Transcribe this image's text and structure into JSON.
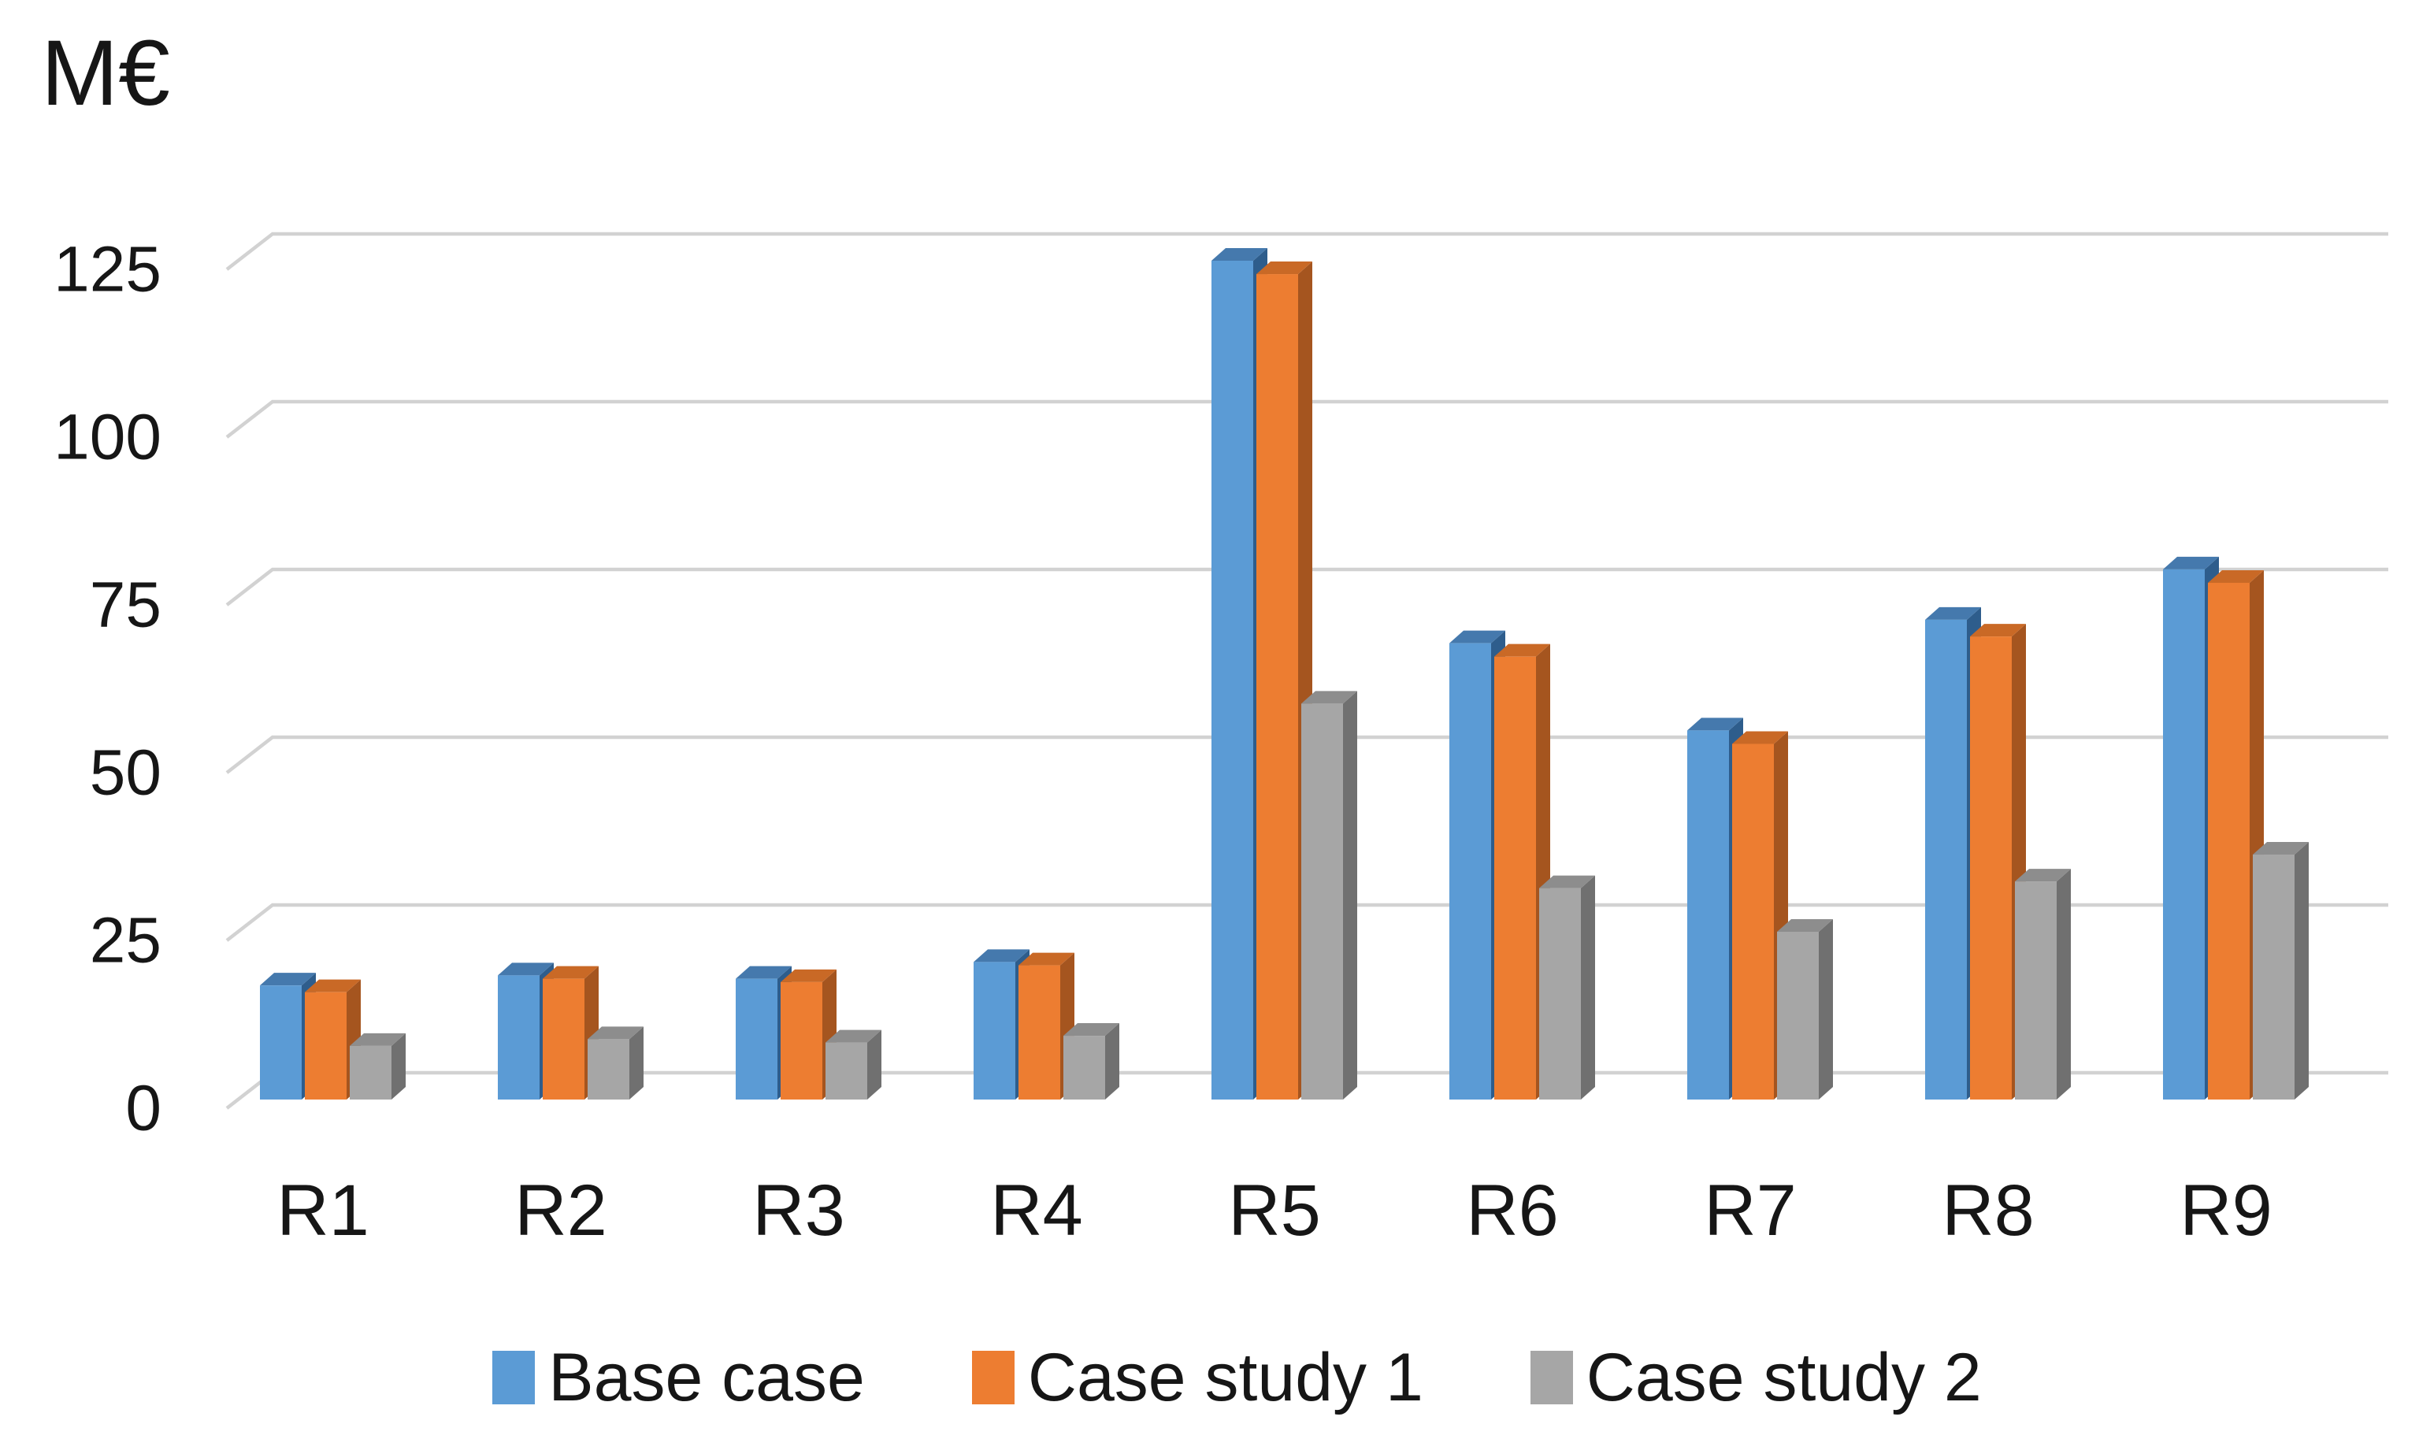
{
  "chart_data": {
    "type": "bar",
    "style": "3d-clustered-column",
    "title": "",
    "xlabel": "",
    "ylabel": "M€",
    "categories": [
      "R1",
      "R2",
      "R3",
      "R4",
      "R5",
      "R6",
      "R7",
      "R8",
      "R9"
    ],
    "series": [
      {
        "name": "Base case",
        "color": "#5B9BD5",
        "top_color": "#4579AD",
        "side_color": "#2E5D8C",
        "values": [
          17,
          18.5,
          18,
          20.5,
          125,
          68,
          55,
          71.5,
          79
        ]
      },
      {
        "name": "Case study 1",
        "color": "#ED7D31",
        "top_color": "#C96926",
        "side_color": "#A5551F",
        "values": [
          16,
          18,
          17.5,
          20,
          123,
          66,
          53,
          69,
          77
        ]
      },
      {
        "name": "Case study 2",
        "color": "#A6A6A6",
        "top_color": "#8D8D8D",
        "side_color": "#707070",
        "values": [
          8,
          9,
          8.5,
          9.5,
          59,
          31.5,
          25,
          32.5,
          36.5
        ]
      }
    ],
    "yticks": [
      0,
      25,
      50,
      75,
      100,
      125
    ],
    "ylim": [
      0,
      130
    ],
    "grid": true,
    "gridline_color": "#D2D2D2",
    "text_color": "#161616",
    "legend_position": "bottom",
    "background_color": "#FFFFFF"
  }
}
